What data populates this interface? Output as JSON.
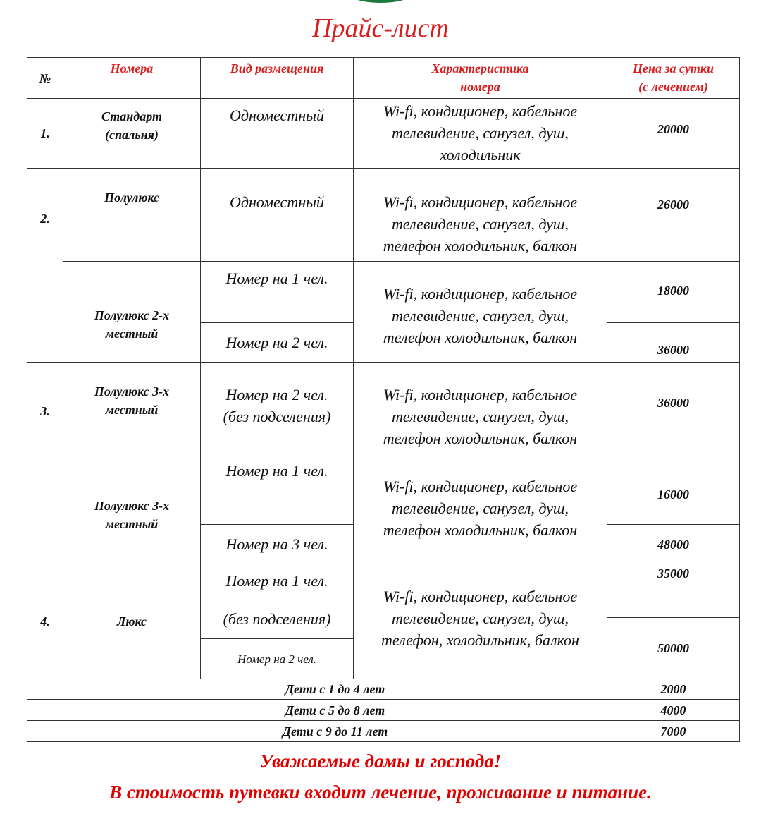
{
  "title": "Прайс-лист",
  "header": {
    "num": "№",
    "rooms": "Номера",
    "placement": "Вид размещения",
    "features": "Характеристика\nномера",
    "price": "Цена за сутки\n(с лечением)"
  },
  "rows": [
    {
      "num": "1.",
      "room": "Стандарт\n(спальня)",
      "placement": "Одноместный",
      "features": "Wi-fi, кондиционер, кабельное\nтелевидение, санузел, душ,\nхолодильник",
      "price": "20000"
    },
    {
      "num": "2.",
      "room": "Полулюкс",
      "placement": "Одноместный",
      "features": "Wi-fi, кондиционер, кабельное\nтелевидение, санузел, душ,\nтелефон холодильник, балкон",
      "price": "26000"
    },
    {
      "room": "Полулюкс 2-х\nместный",
      "placement_1": "Номер на 1 чел.",
      "placement_2": "Номер на 2 чел.",
      "features": "Wi-fi, кондиционер, кабельное\nтелевидение, санузел, душ,\nтелефон холодильник, балкон",
      "price_1": "18000",
      "price_2": "36000"
    },
    {
      "num": "3.",
      "room": "Полулюкс 3-х\nместный",
      "placement": "Номер на 2 чел.\n(без подселения)",
      "features": "Wi-fi, кондиционер, кабельное\nтелевидение, санузел, душ,\nтелефон холодильник, балкон",
      "price": "36000"
    },
    {
      "room": "Полулюкс 3-х\nместный",
      "placement_1": "Номер на 1 чел.",
      "placement_2": "Номер на 3 чел.",
      "features": "Wi-fi, кондиционер, кабельное\nтелевидение, санузел, душ,\nтелефон холодильник, балкон",
      "price_1": "16000",
      "price_2": "48000"
    },
    {
      "num": "4.",
      "room": "Люкс",
      "placement_1": "Номер на 1 чел.\n\n(без подселения)",
      "placement_2": "Номер на 2 чел.",
      "features": "Wi-fi, кондиционер, кабельное\nтелевидение, санузел, душ,\nтелефон, холодильник, балкон",
      "price_1": "35000",
      "price_2": "50000"
    }
  ],
  "children": [
    {
      "label": "Дети с 1 до 4 лет",
      "price": "2000"
    },
    {
      "label": "Дети с 5 до 8 лет",
      "price": "4000"
    },
    {
      "label": "Дети с 9 до 11 лет",
      "price": "7000"
    }
  ],
  "footer": {
    "line1": "Уважаемые дамы и господа!",
    "line2": "В стоимость путевки входит лечение, проживание и питание."
  },
  "colors": {
    "accent": "#d81e1e",
    "logo": "#1e7a3c"
  }
}
